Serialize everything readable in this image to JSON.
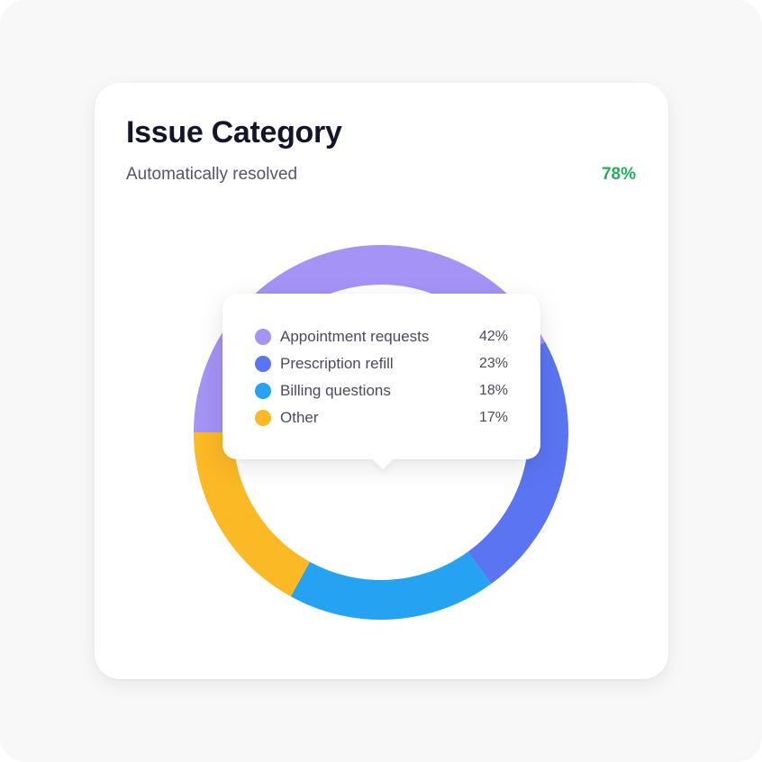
{
  "card": {
    "title": "Issue Category",
    "subtitle": "Automatically resolved",
    "resolved_percent": "78%",
    "resolved_color": "#22b05c"
  },
  "chart_data": {
    "type": "pie",
    "variant": "donut",
    "legend_placement": "tooltip overlay",
    "slices": [
      {
        "name": "Appointment requests",
        "value": 42,
        "label": "42%",
        "color": "#a593f5"
      },
      {
        "name": "Prescription refill",
        "value": 23,
        "label": "23%",
        "color": "#5b74f1"
      },
      {
        "name": "Billing questions",
        "value": 18,
        "label": "18%",
        "color": "#26a2f3"
      },
      {
        "name": "Other",
        "value": 17,
        "label": "17%",
        "color": "#fbb926"
      }
    ]
  }
}
